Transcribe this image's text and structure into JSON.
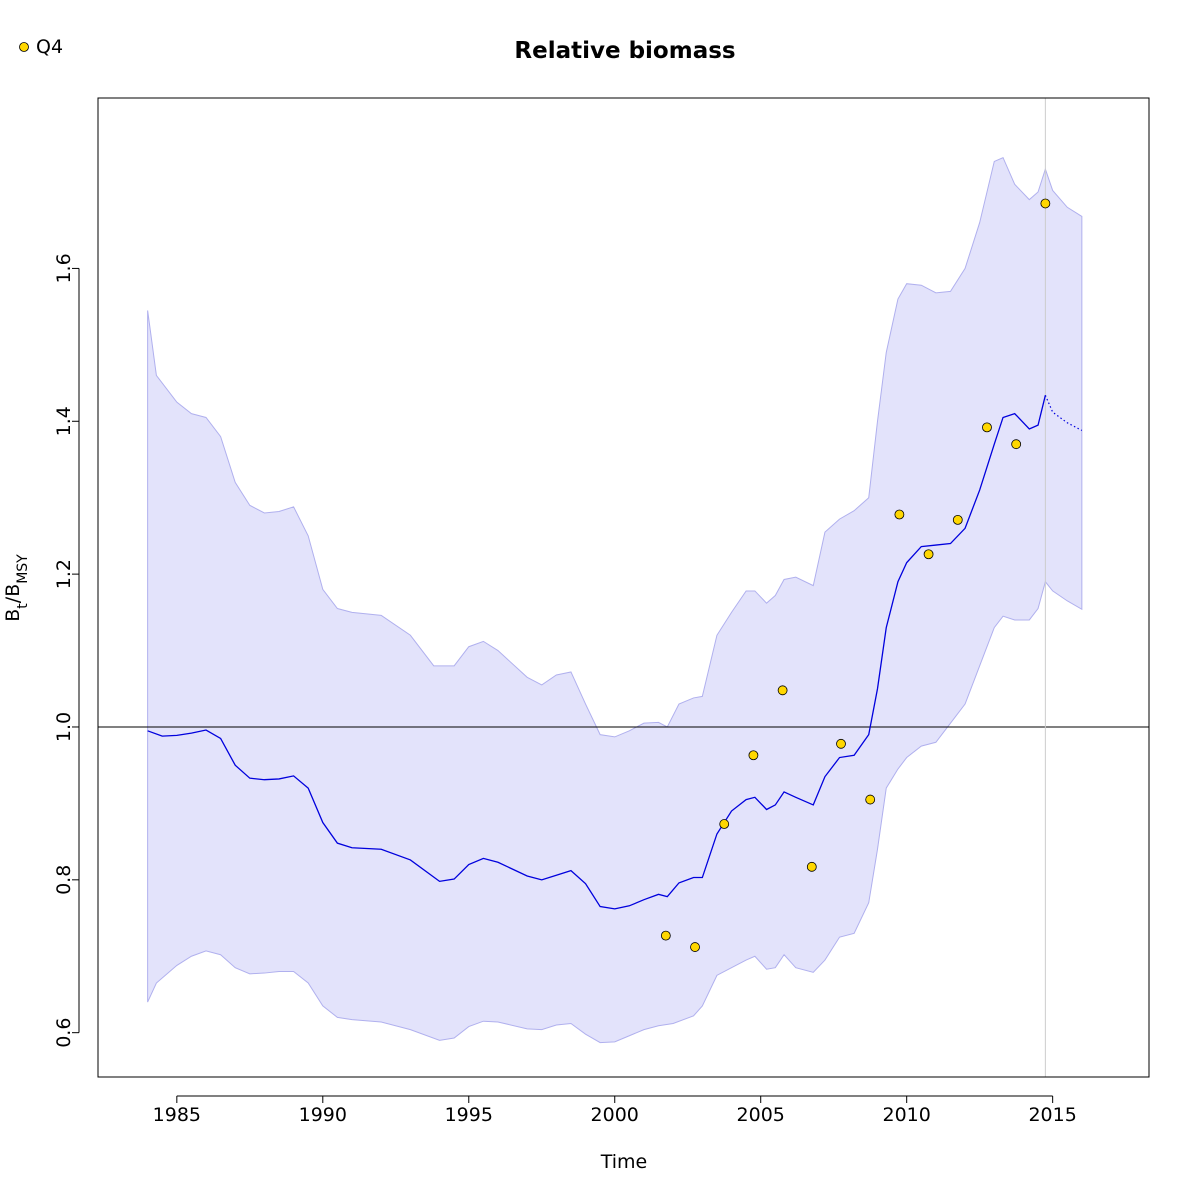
{
  "chart_data": {
    "type": "line",
    "title": "Relative biomass",
    "xlabel": "Time",
    "ylabel": {
      "main": "B",
      "sub1": "t",
      "sep": "/B",
      "sub2": "MSY"
    },
    "xlim": [
      1982.3,
      2018.3
    ],
    "ylim": [
      0.542,
      1.823
    ],
    "xticks": [
      1985,
      1990,
      1995,
      2000,
      2005,
      2010,
      2015
    ],
    "yticks": [
      0.6,
      0.8,
      1.0,
      1.2,
      1.4,
      1.6
    ],
    "xtick_labels": [
      "1985",
      "1990",
      "1995",
      "2000",
      "2005",
      "2010",
      "2015"
    ],
    "ytick_labels": [
      "0.6",
      "0.8",
      "1.0",
      "1.2",
      "1.4",
      "1.6"
    ],
    "reference_line_y": 1.0,
    "last_observation_x": 2014.75,
    "legend": {
      "position": "top-left",
      "entries": [
        "Q4"
      ]
    },
    "colors": {
      "median_line": "#0000dd",
      "ci_fill": "#e3e3fb",
      "ci_edge": "#b0b0ee",
      "points": "#ffd700",
      "vline": "#cccccc"
    },
    "median": [
      [
        1984.0,
        0.995
      ],
      [
        1984.5,
        0.988
      ],
      [
        1985.0,
        0.989
      ],
      [
        1985.5,
        0.992
      ],
      [
        1986.0,
        0.996
      ],
      [
        1986.5,
        0.985
      ],
      [
        1987.0,
        0.95
      ],
      [
        1987.5,
        0.933
      ],
      [
        1988.0,
        0.931
      ],
      [
        1988.5,
        0.932
      ],
      [
        1989.0,
        0.936
      ],
      [
        1989.5,
        0.92
      ],
      [
        1990.0,
        0.875
      ],
      [
        1990.5,
        0.848
      ],
      [
        1991.0,
        0.842
      ],
      [
        1992.0,
        0.84
      ],
      [
        1993.0,
        0.826
      ],
      [
        1994.0,
        0.798
      ],
      [
        1994.5,
        0.801
      ],
      [
        1995.0,
        0.82
      ],
      [
        1995.5,
        0.828
      ],
      [
        1996.0,
        0.823
      ],
      [
        1997.0,
        0.805
      ],
      [
        1997.5,
        0.8
      ],
      [
        1998.0,
        0.806
      ],
      [
        1998.5,
        0.812
      ],
      [
        1999.0,
        0.795
      ],
      [
        1999.5,
        0.765
      ],
      [
        2000.0,
        0.762
      ],
      [
        2000.5,
        0.766
      ],
      [
        2001.0,
        0.774
      ],
      [
        2001.5,
        0.781
      ],
      [
        2001.8,
        0.778
      ],
      [
        2002.2,
        0.796
      ],
      [
        2002.7,
        0.803
      ],
      [
        2003.0,
        0.803
      ],
      [
        2003.5,
        0.86
      ],
      [
        2004.0,
        0.89
      ],
      [
        2004.5,
        0.905
      ],
      [
        2004.8,
        0.908
      ],
      [
        2005.2,
        0.892
      ],
      [
        2005.5,
        0.898
      ],
      [
        2005.8,
        0.915
      ],
      [
        2006.2,
        0.908
      ],
      [
        2006.8,
        0.898
      ],
      [
        2007.2,
        0.935
      ],
      [
        2007.7,
        0.96
      ],
      [
        2008.2,
        0.963
      ],
      [
        2008.7,
        0.99
      ],
      [
        2009.0,
        1.05
      ],
      [
        2009.3,
        1.13
      ],
      [
        2009.7,
        1.19
      ],
      [
        2010.0,
        1.215
      ],
      [
        2010.5,
        1.236
      ],
      [
        2011.0,
        1.238
      ],
      [
        2011.5,
        1.24
      ],
      [
        2012.0,
        1.26
      ],
      [
        2012.5,
        1.31
      ],
      [
        2013.0,
        1.37
      ],
      [
        2013.3,
        1.405
      ],
      [
        2013.7,
        1.41
      ],
      [
        2014.2,
        1.39
      ],
      [
        2014.5,
        1.395
      ],
      [
        2014.75,
        1.434
      ]
    ],
    "projection": [
      [
        2014.75,
        1.434
      ],
      [
        2015.0,
        1.412
      ],
      [
        2015.5,
        1.398
      ],
      [
        2016.0,
        1.388
      ]
    ],
    "ci_upper": [
      [
        1984.0,
        1.545
      ],
      [
        1984.3,
        1.46
      ],
      [
        1985.0,
        1.425
      ],
      [
        1985.5,
        1.41
      ],
      [
        1986.0,
        1.405
      ],
      [
        1986.5,
        1.38
      ],
      [
        1987.0,
        1.32
      ],
      [
        1987.5,
        1.29
      ],
      [
        1988.0,
        1.28
      ],
      [
        1988.5,
        1.282
      ],
      [
        1989.0,
        1.288
      ],
      [
        1989.5,
        1.25
      ],
      [
        1990.0,
        1.18
      ],
      [
        1990.5,
        1.155
      ],
      [
        1991.0,
        1.15
      ],
      [
        1992.0,
        1.146
      ],
      [
        1993.0,
        1.12
      ],
      [
        1993.8,
        1.08
      ],
      [
        1994.5,
        1.08
      ],
      [
        1995.0,
        1.105
      ],
      [
        1995.5,
        1.112
      ],
      [
        1996.0,
        1.1
      ],
      [
        1997.0,
        1.065
      ],
      [
        1997.5,
        1.055
      ],
      [
        1998.0,
        1.068
      ],
      [
        1998.5,
        1.072
      ],
      [
        1999.0,
        1.03
      ],
      [
        1999.5,
        0.99
      ],
      [
        2000.0,
        0.987
      ],
      [
        2000.5,
        0.995
      ],
      [
        2001.0,
        1.005
      ],
      [
        2001.5,
        1.006
      ],
      [
        2001.8,
        1.0
      ],
      [
        2002.2,
        1.03
      ],
      [
        2002.7,
        1.038
      ],
      [
        2003.0,
        1.04
      ],
      [
        2003.5,
        1.12
      ],
      [
        2004.0,
        1.15
      ],
      [
        2004.5,
        1.178
      ],
      [
        2004.8,
        1.178
      ],
      [
        2005.2,
        1.162
      ],
      [
        2005.5,
        1.172
      ],
      [
        2005.8,
        1.193
      ],
      [
        2006.2,
        1.196
      ],
      [
        2006.8,
        1.185
      ],
      [
        2007.2,
        1.255
      ],
      [
        2007.7,
        1.272
      ],
      [
        2008.2,
        1.283
      ],
      [
        2008.7,
        1.3
      ],
      [
        2009.0,
        1.4
      ],
      [
        2009.3,
        1.49
      ],
      [
        2009.7,
        1.56
      ],
      [
        2010.0,
        1.58
      ],
      [
        2010.5,
        1.578
      ],
      [
        2011.0,
        1.568
      ],
      [
        2011.5,
        1.57
      ],
      [
        2012.0,
        1.6
      ],
      [
        2012.5,
        1.66
      ],
      [
        2013.0,
        1.74
      ],
      [
        2013.3,
        1.745
      ],
      [
        2013.7,
        1.71
      ],
      [
        2014.2,
        1.69
      ],
      [
        2014.5,
        1.7
      ],
      [
        2014.75,
        1.73
      ],
      [
        2015.0,
        1.702
      ],
      [
        2015.5,
        1.68
      ],
      [
        2016.0,
        1.668
      ]
    ],
    "ci_lower": [
      [
        1984.0,
        0.64
      ],
      [
        1984.3,
        0.665
      ],
      [
        1985.0,
        0.688
      ],
      [
        1985.5,
        0.7
      ],
      [
        1986.0,
        0.707
      ],
      [
        1986.5,
        0.702
      ],
      [
        1987.0,
        0.685
      ],
      [
        1987.5,
        0.677
      ],
      [
        1988.0,
        0.678
      ],
      [
        1988.5,
        0.68
      ],
      [
        1989.0,
        0.68
      ],
      [
        1989.5,
        0.665
      ],
      [
        1990.0,
        0.635
      ],
      [
        1990.5,
        0.62
      ],
      [
        1991.0,
        0.617
      ],
      [
        1992.0,
        0.614
      ],
      [
        1993.0,
        0.604
      ],
      [
        1994.0,
        0.59
      ],
      [
        1994.5,
        0.593
      ],
      [
        1995.0,
        0.608
      ],
      [
        1995.5,
        0.615
      ],
      [
        1996.0,
        0.614
      ],
      [
        1997.0,
        0.605
      ],
      [
        1997.5,
        0.604
      ],
      [
        1998.0,
        0.61
      ],
      [
        1998.5,
        0.612
      ],
      [
        1999.0,
        0.598
      ],
      [
        1999.5,
        0.587
      ],
      [
        2000.0,
        0.588
      ],
      [
        2000.5,
        0.596
      ],
      [
        2001.0,
        0.604
      ],
      [
        2001.5,
        0.609
      ],
      [
        2002.0,
        0.612
      ],
      [
        2002.7,
        0.622
      ],
      [
        2003.0,
        0.635
      ],
      [
        2003.5,
        0.675
      ],
      [
        2004.0,
        0.685
      ],
      [
        2004.5,
        0.695
      ],
      [
        2004.8,
        0.7
      ],
      [
        2005.2,
        0.683
      ],
      [
        2005.5,
        0.685
      ],
      [
        2005.8,
        0.702
      ],
      [
        2006.2,
        0.685
      ],
      [
        2006.8,
        0.679
      ],
      [
        2007.2,
        0.695
      ],
      [
        2007.7,
        0.725
      ],
      [
        2008.2,
        0.73
      ],
      [
        2008.7,
        0.77
      ],
      [
        2009.0,
        0.84
      ],
      [
        2009.3,
        0.92
      ],
      [
        2009.7,
        0.945
      ],
      [
        2010.0,
        0.96
      ],
      [
        2010.5,
        0.975
      ],
      [
        2011.0,
        0.98
      ],
      [
        2011.5,
        1.005
      ],
      [
        2012.0,
        1.03
      ],
      [
        2012.5,
        1.08
      ],
      [
        2013.0,
        1.13
      ],
      [
        2013.3,
        1.145
      ],
      [
        2013.7,
        1.14
      ],
      [
        2014.2,
        1.14
      ],
      [
        2014.5,
        1.155
      ],
      [
        2014.75,
        1.19
      ],
      [
        2015.0,
        1.178
      ],
      [
        2015.5,
        1.165
      ],
      [
        2016.0,
        1.154
      ]
    ],
    "series": [
      {
        "name": "Q4",
        "x": [
          2001.75,
          2002.75,
          2003.75,
          2004.75,
          2005.75,
          2006.75,
          2007.75,
          2008.75,
          2009.75,
          2010.75,
          2011.75,
          2012.75,
          2013.75,
          2014.75
        ],
        "values": [
          0.727,
          0.712,
          0.873,
          0.963,
          1.048,
          0.817,
          0.978,
          0.905,
          1.278,
          1.226,
          1.271,
          1.392,
          1.37,
          1.685
        ]
      }
    ]
  }
}
